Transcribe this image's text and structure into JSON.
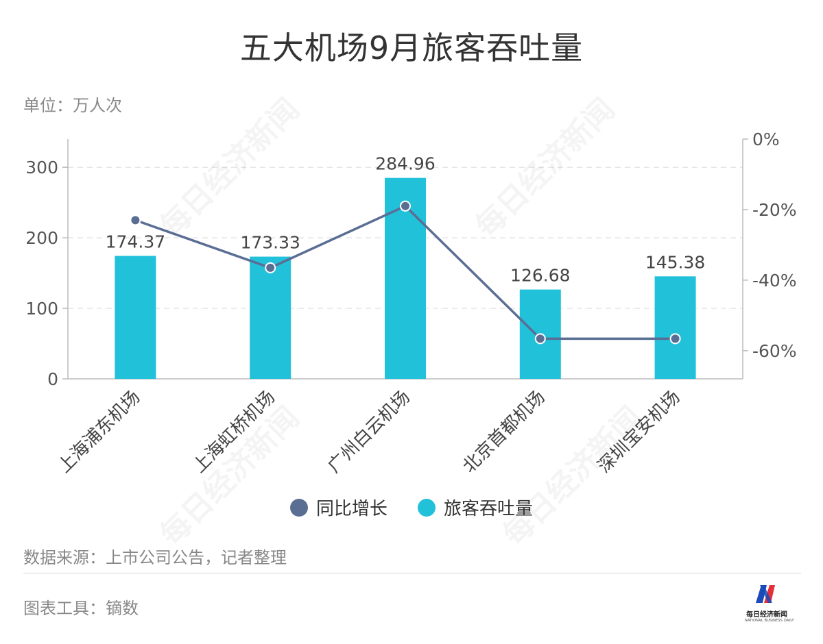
{
  "title": "五大机场9月旅客吞吐量",
  "unit_label": "单位：万人次",
  "legend": [
    {
      "label": "同比增长",
      "color": "#5a6e94"
    },
    {
      "label": "旅客吞吐量",
      "color": "#22c1da"
    }
  ],
  "source_label": "数据来源：上市公司公告，记者整理",
  "tool_label": "图表工具：镝数",
  "watermark_text": "每日经济新闻",
  "logo": {
    "zh": "每日经济新闻",
    "en": "NATIONAL BUSINESS DAILY"
  },
  "chart_data": {
    "type": "bar",
    "categories": [
      "上海浦东机场",
      "上海虹桥机场",
      "广州白云机场",
      "北京首都机场",
      "深圳宝安机场"
    ],
    "series": [
      {
        "name": "旅客吞吐量",
        "type": "bar",
        "axis": "left",
        "color": "#22c1da",
        "values": [
          174.37,
          173.33,
          284.96,
          126.68,
          145.38
        ],
        "labels": [
          "174.37",
          "173.33",
          "284.96",
          "126.68",
          "145.38"
        ]
      },
      {
        "name": "同比增长",
        "type": "line",
        "axis": "right",
        "color": "#5a6e94",
        "values": [
          -23,
          -36.5,
          -19,
          -56.6,
          -56.6
        ]
      }
    ],
    "left_axis": {
      "min": 0,
      "max": 340,
      "ticks": [
        0,
        100,
        200,
        300
      ],
      "tick_labels": [
        "0",
        "100",
        "200",
        "300"
      ]
    },
    "right_axis": {
      "min": -68,
      "max": 0,
      "ticks": [
        0,
        -20,
        -40,
        -60
      ],
      "tick_labels": [
        "0%",
        "-20%",
        "-40%",
        "-60%"
      ]
    },
    "grid": true,
    "legend_position": "bottom"
  }
}
